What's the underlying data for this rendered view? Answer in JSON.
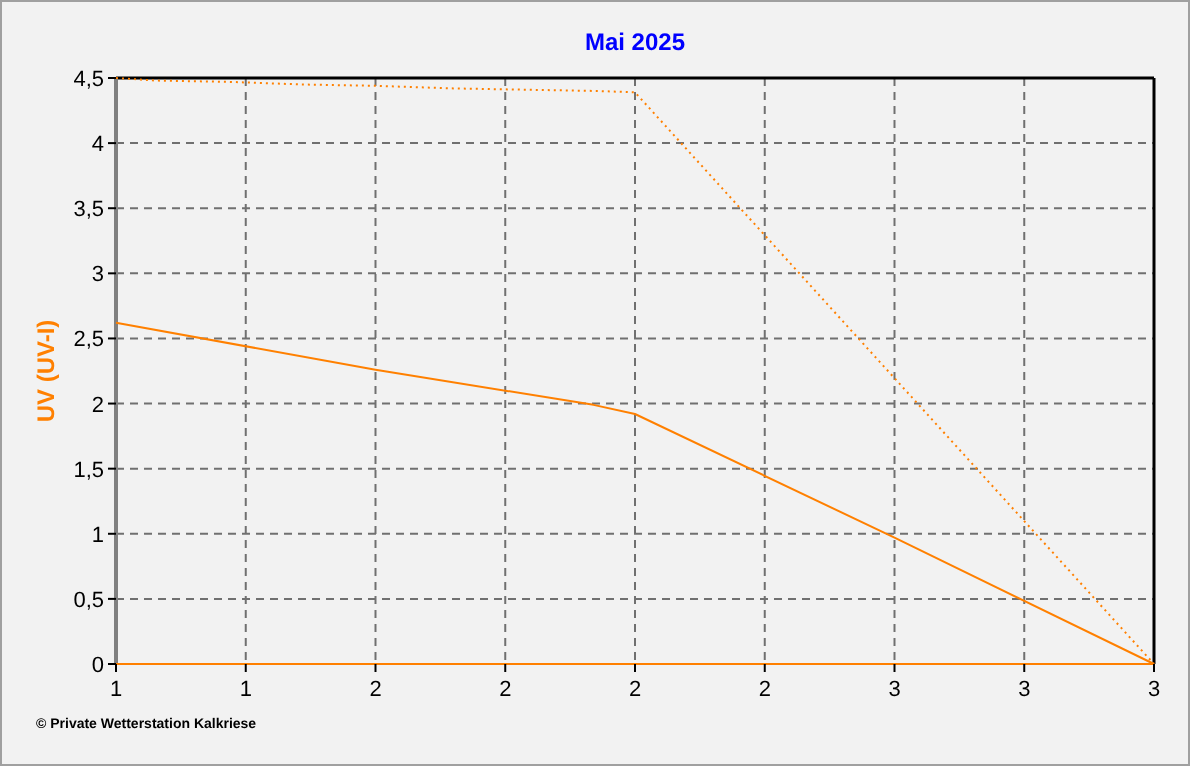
{
  "chart_data": {
    "type": "line",
    "title": "Mai 2025",
    "ylabel": "UV (UV-I)",
    "xlim": [
      1,
      3
    ],
    "xticks": [
      {
        "value": 1,
        "label": "1"
      },
      {
        "value": 1.25,
        "label": "1"
      },
      {
        "value": 1.5,
        "label": "2"
      },
      {
        "value": 1.75,
        "label": "2"
      },
      {
        "value": 2,
        "label": "2"
      },
      {
        "value": 2.25,
        "label": "2"
      },
      {
        "value": 2.5,
        "label": "3"
      },
      {
        "value": 2.75,
        "label": "3"
      },
      {
        "value": 3,
        "label": "3"
      }
    ],
    "ylim": [
      0,
      4.5
    ],
    "yticks": [
      0,
      {
        "value": 0.5,
        "label": "0,5"
      },
      1,
      {
        "value": 1.5,
        "label": "1,5"
      },
      2,
      {
        "value": 2.5,
        "label": "2,5"
      },
      3,
      {
        "value": 3.5,
        "label": "3,5"
      },
      4,
      {
        "value": 4.5,
        "label": "4,5"
      }
    ],
    "grid": true,
    "series": [
      {
        "color": "#ff8000",
        "line_style": "dotted",
        "x": [
          1,
          1.08,
          1.22,
          1.36,
          1.5,
          1.65,
          1.79,
          1.93,
          2,
          3
        ],
        "values": [
          4.5,
          4.48,
          4.47,
          4.45,
          4.44,
          4.42,
          4.41,
          4.4,
          4.39,
          0
        ]
      },
      {
        "color": "#ff8000",
        "line_style": "solid",
        "x": [
          1,
          1.5,
          1.92,
          2,
          2.5,
          3
        ],
        "values": [
          2.62,
          2.26,
          1.99,
          1.92,
          0.97,
          0
        ]
      },
      {
        "color": "#ff8000",
        "line_style": "solid",
        "x": [
          1,
          3
        ],
        "values": [
          0,
          0
        ]
      }
    ],
    "annotations": [
      "© Private Wetterstation Kalkriese"
    ]
  }
}
